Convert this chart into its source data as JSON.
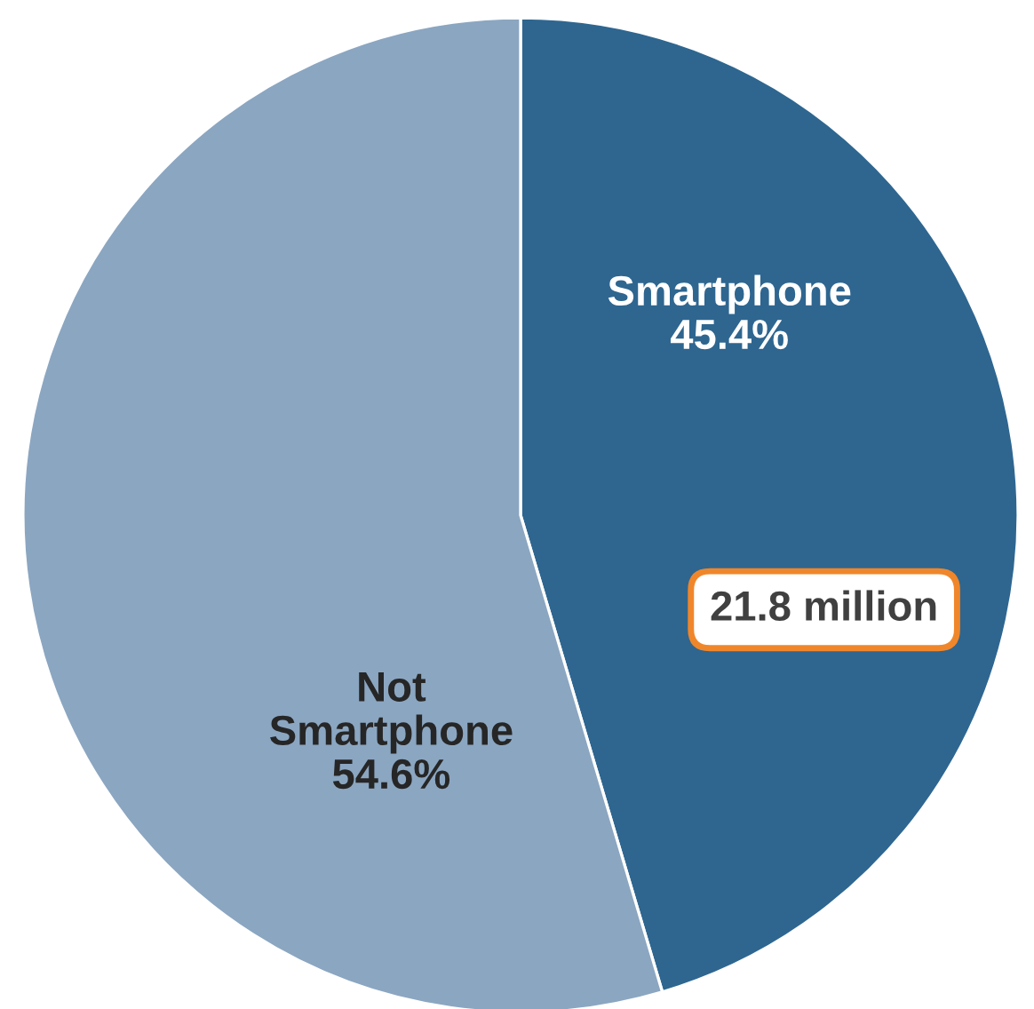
{
  "chart_data": {
    "type": "pie",
    "categories": [
      "Smartphone",
      "Not Smartphone"
    ],
    "values": [
      45.4,
      54.6
    ],
    "colors": [
      "#2e6690",
      "#8ba6c1"
    ],
    "value_labels": [
      "45.4%",
      "54.6%"
    ],
    "annotations": [
      "21.8 million"
    ]
  }
}
